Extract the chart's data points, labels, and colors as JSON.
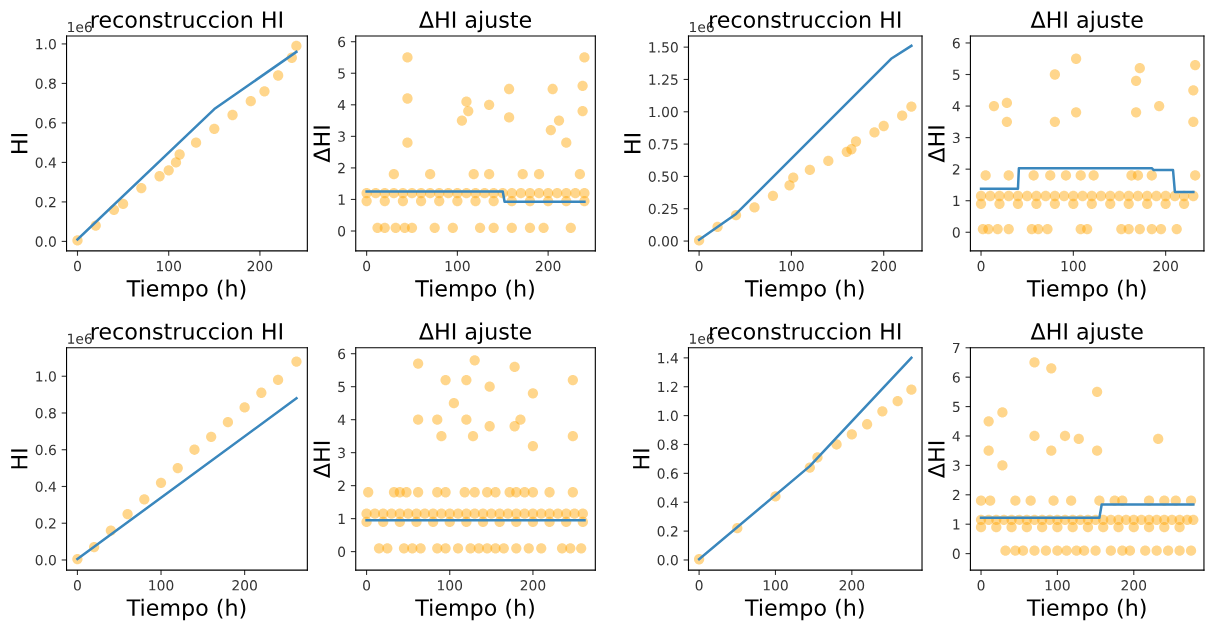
{
  "chart_data": [
    {
      "type": "line",
      "title": "reconstruccion HI",
      "xlabel": "Tiempo (h)",
      "ylabel": "HI",
      "annotations": [
        "1e6"
      ],
      "grid": false,
      "xlim": [
        -12,
        252
      ],
      "xticks": [
        0,
        100,
        200
      ],
      "ylim": [
        -0.048,
        1.04
      ],
      "yticks": [
        {
          "value": 0,
          "label": "0.0"
        },
        0.2,
        0.4,
        0.6,
        0.8,
        {
          "value": 1,
          "label": "1.0"
        }
      ],
      "series": [
        {
          "type": "scatter",
          "marker": "circle",
          "color": "#ffa500",
          "x": [
            0,
            20,
            40,
            50,
            70,
            90,
            100,
            108,
            112,
            130,
            150,
            170,
            190,
            205,
            220,
            235,
            240
          ],
          "values": [
            0.005,
            0.08,
            0.16,
            0.19,
            0.27,
            0.33,
            0.36,
            0.4,
            0.44,
            0.5,
            0.57,
            0.64,
            0.71,
            0.76,
            0.84,
            0.93,
            0.99
          ]
        },
        {
          "color": "#3a87bd",
          "x": [
            0,
            150,
            240
          ],
          "values": [
            0.01,
            0.67,
            0.96
          ]
        }
      ]
    },
    {
      "type": "line",
      "title": "ΔHI ajuste",
      "xlabel": "Tiempo (h)",
      "ylabel": "ΔHI",
      "grid": false,
      "xlim": [
        -12,
        252
      ],
      "xticks": [
        0,
        100,
        200
      ],
      "ylim": [
        -0.63,
        6.18
      ],
      "yticks": [
        0,
        1,
        2,
        3,
        4,
        5,
        6
      ],
      "series": [
        {
          "type": "scatter",
          "marker": "circle",
          "color": "#ffa500",
          "x": [
            0,
            10,
            20,
            30,
            40,
            50,
            60,
            70,
            80,
            90,
            100,
            110,
            120,
            130,
            140,
            150,
            160,
            170,
            180,
            190,
            200,
            210,
            220,
            230,
            240,
            0,
            20,
            40,
            60,
            80,
            100,
            120,
            140,
            160,
            180,
            200,
            220,
            240,
            30,
            70,
            118,
            135,
            172,
            190,
            235,
            12,
            20,
            32,
            42,
            50,
            75,
            95,
            125,
            140,
            160,
            180,
            195,
            225,
            45,
            45,
            45,
            105,
            110,
            112,
            135,
            157,
            157,
            203,
            205,
            212,
            220,
            238,
            238,
            240
          ],
          "values": [
            1.2,
            1.2,
            1.2,
            1.2,
            1.2,
            1.2,
            1.2,
            1.2,
            1.2,
            1.2,
            1.2,
            1.2,
            1.2,
            1.2,
            1.2,
            1.2,
            1.2,
            1.2,
            1.2,
            1.2,
            1.2,
            1.2,
            1.2,
            1.2,
            1.2,
            0.95,
            0.95,
            0.95,
            0.95,
            0.95,
            0.95,
            0.95,
            0.95,
            0.95,
            0.95,
            0.95,
            0.95,
            0.95,
            1.8,
            1.8,
            1.8,
            1.8,
            1.8,
            1.8,
            1.8,
            0.1,
            0.1,
            0.1,
            0.1,
            0.1,
            0.1,
            0.1,
            0.1,
            0.1,
            0.1,
            0.1,
            0.1,
            0.1,
            2.8,
            4.2,
            5.5,
            3.5,
            4.1,
            3.8,
            4.0,
            3.6,
            4.5,
            3.2,
            4.5,
            3.5,
            2.8,
            3.8,
            4.6,
            5.5
          ]
        },
        {
          "color": "#3a87bd",
          "x": [
            0,
            150,
            152,
            240
          ],
          "values": [
            1.25,
            1.25,
            0.93,
            0.93
          ]
        }
      ]
    },
    {
      "type": "line",
      "title": "reconstruccion HI",
      "xlabel": "Tiempo (h)",
      "ylabel": "HI",
      "annotations": [
        "1e6"
      ],
      "grid": false,
      "xlim": [
        -11.5,
        241.5
      ],
      "xticks": [
        0,
        100,
        200
      ],
      "ylim": [
        -0.076,
        1.586
      ],
      "yticks": [
        {
          "value": 0,
          "label": "0.00"
        },
        0.25,
        {
          "value": 0.5,
          "label": "0.50"
        },
        0.75,
        {
          "value": 1,
          "label": "1.00"
        },
        1.25,
        {
          "value": 1.5,
          "label": "1.50"
        }
      ],
      "series": [
        {
          "type": "scatter",
          "marker": "circle",
          "color": "#ffa500",
          "x": [
            0,
            20,
            40,
            60,
            80,
            98,
            102,
            120,
            140,
            160,
            165,
            170,
            190,
            200,
            220,
            230
          ],
          "values": [
            0.005,
            0.11,
            0.2,
            0.26,
            0.35,
            0.43,
            0.49,
            0.55,
            0.62,
            0.69,
            0.71,
            0.77,
            0.84,
            0.89,
            0.97,
            1.04
          ]
        },
        {
          "color": "#3a87bd",
          "x": [
            0,
            40,
            208,
            230
          ],
          "values": [
            0.01,
            0.21,
            1.41,
            1.51
          ]
        }
      ]
    },
    {
      "type": "line",
      "title": "ΔHI ajuste",
      "xlabel": "Tiempo (h)",
      "ylabel": "ΔHI",
      "grid": false,
      "xlim": [
        -11.5,
        241.5
      ],
      "xticks": [
        0,
        100,
        200
      ],
      "ylim": [
        -0.59,
        6.22
      ],
      "yticks": [
        0,
        1,
        2,
        3,
        4,
        5,
        6
      ],
      "series": [
        {
          "type": "scatter",
          "marker": "circle",
          "color": "#ffa500",
          "x": [
            0,
            10,
            20,
            30,
            40,
            50,
            60,
            70,
            80,
            90,
            100,
            110,
            120,
            130,
            140,
            150,
            160,
            170,
            180,
            190,
            200,
            210,
            220,
            230,
            0,
            20,
            40,
            60,
            80,
            100,
            120,
            140,
            160,
            180,
            200,
            220,
            5,
            30,
            57,
            75,
            92,
            108,
            122,
            163,
            170,
            185,
            232,
            2,
            8,
            18,
            30,
            55,
            62,
            72,
            108,
            115,
            152,
            160,
            172,
            185,
            195,
            212,
            14,
            28,
            28,
            80,
            80,
            103,
            103,
            168,
            168,
            172,
            193,
            230,
            230,
            232
          ],
          "values": [
            1.15,
            1.15,
            1.15,
            1.15,
            1.15,
            1.15,
            1.15,
            1.15,
            1.15,
            1.15,
            1.15,
            1.15,
            1.15,
            1.15,
            1.15,
            1.15,
            1.15,
            1.15,
            1.15,
            1.15,
            1.15,
            1.15,
            1.15,
            1.15,
            0.9,
            0.9,
            0.9,
            0.9,
            0.9,
            0.9,
            0.9,
            0.9,
            0.9,
            0.9,
            0.9,
            0.9,
            1.8,
            1.8,
            1.8,
            1.8,
            1.8,
            1.8,
            1.8,
            1.8,
            1.8,
            1.8,
            1.8,
            0.1,
            0.1,
            0.1,
            0.1,
            0.1,
            0.1,
            0.1,
            0.1,
            0.1,
            0.1,
            0.1,
            0.1,
            0.1,
            0.1,
            0.1,
            4.0,
            4.1,
            3.5,
            3.5,
            5.0,
            3.8,
            5.5,
            3.8,
            4.8,
            5.2,
            4.0,
            3.5,
            4.5,
            5.3
          ]
        },
        {
          "color": "#3a87bd",
          "x": [
            0,
            40,
            41,
            185,
            187,
            208,
            210,
            230
          ],
          "values": [
            1.38,
            1.38,
            2.03,
            2.03,
            1.97,
            1.97,
            1.28,
            1.28
          ]
        }
      ]
    },
    {
      "type": "line",
      "title": "reconstruccion HI",
      "xlabel": "Tiempo (h)",
      "ylabel": "HI",
      "annotations": [
        "1e6"
      ],
      "grid": false,
      "xlim": [
        -13,
        275
      ],
      "xticks": [
        0,
        100,
        200
      ],
      "ylim": [
        -0.055,
        1.155
      ],
      "yticks": [
        {
          "value": 0,
          "label": "0.0"
        },
        0.2,
        0.4,
        0.6,
        0.8,
        {
          "value": 1,
          "label": "1.0"
        }
      ],
      "series": [
        {
          "type": "scatter",
          "marker": "circle",
          "color": "#ffa500",
          "x": [
            0,
            20,
            40,
            60,
            80,
            100,
            120,
            140,
            160,
            180,
            200,
            220,
            240,
            262
          ],
          "values": [
            0.005,
            0.07,
            0.16,
            0.25,
            0.33,
            0.42,
            0.5,
            0.6,
            0.67,
            0.75,
            0.83,
            0.91,
            0.98,
            1.08
          ]
        },
        {
          "color": "#3a87bd",
          "x": [
            0,
            262
          ],
          "values": [
            0.005,
            0.88
          ]
        }
      ]
    },
    {
      "type": "line",
      "title": "ΔHI ajuste",
      "xlabel": "Tiempo (h)",
      "ylabel": "ΔHI",
      "grid": false,
      "xlim": [
        -13,
        275
      ],
      "xticks": [
        0,
        100,
        200
      ],
      "ylim": [
        -0.56,
        6.18
      ],
      "yticks": [
        0,
        1,
        2,
        3,
        4,
        5,
        6
      ],
      "series": [
        {
          "type": "scatter",
          "marker": "circle",
          "color": "#ffa500",
          "x": [
            0,
            10,
            20,
            30,
            40,
            50,
            60,
            70,
            80,
            90,
            100,
            110,
            120,
            130,
            140,
            150,
            160,
            170,
            180,
            190,
            200,
            210,
            220,
            230,
            240,
            250,
            260,
            0,
            20,
            40,
            60,
            80,
            100,
            120,
            140,
            160,
            180,
            200,
            220,
            240,
            260,
            2,
            33,
            40,
            48,
            62,
            85,
            95,
            118,
            130,
            145,
            155,
            172,
            180,
            190,
            200,
            220,
            248,
            15,
            25,
            45,
            55,
            65,
            85,
            95,
            110,
            125,
            135,
            145,
            155,
            165,
            180,
            195,
            210,
            235,
            245,
            258,
            62,
            62,
            85,
            90,
            95,
            105,
            120,
            120,
            128,
            130,
            148,
            148,
            178,
            178,
            185,
            200,
            200,
            248,
            248
          ],
          "values": [
            1.15,
            1.15,
            1.15,
            1.15,
            1.15,
            1.15,
            1.15,
            1.15,
            1.15,
            1.15,
            1.15,
            1.15,
            1.15,
            1.15,
            1.15,
            1.15,
            1.15,
            1.15,
            1.15,
            1.15,
            1.15,
            1.15,
            1.15,
            1.15,
            1.15,
            1.15,
            1.15,
            0.9,
            0.9,
            0.9,
            0.9,
            0.9,
            0.9,
            0.9,
            0.9,
            0.9,
            0.9,
            0.9,
            0.9,
            0.9,
            0.9,
            1.8,
            1.8,
            1.8,
            1.8,
            1.8,
            1.8,
            1.8,
            1.8,
            1.8,
            1.8,
            1.8,
            1.8,
            1.8,
            1.8,
            1.8,
            1.8,
            1.8,
            0.1,
            0.1,
            0.1,
            0.1,
            0.1,
            0.1,
            0.1,
            0.1,
            0.1,
            0.1,
            0.1,
            0.1,
            0.1,
            0.1,
            0.1,
            0.1,
            0.1,
            0.1,
            0.1,
            4.0,
            5.7,
            4.0,
            3.5,
            5.2,
            4.5,
            4.0,
            5.2,
            3.5,
            5.8,
            3.8,
            5.0,
            3.8,
            5.6,
            4.0,
            3.2,
            4.8,
            3.5,
            5.2
          ]
        },
        {
          "color": "#3a87bd",
          "x": [
            0,
            262
          ],
          "values": [
            0.95,
            0.95
          ]
        }
      ]
    },
    {
      "type": "line",
      "title": "reconstruccion HI",
      "xlabel": "Tiempo (h)",
      "ylabel": "HI",
      "annotations": [
        "1e6"
      ],
      "grid": false,
      "xlim": [
        -13.9,
        291.9
      ],
      "xticks": [
        0,
        100,
        200
      ],
      "ylim": [
        -0.07,
        1.47
      ],
      "yticks": [
        {
          "value": 0,
          "label": "0.0"
        },
        0.2,
        0.4,
        0.6,
        0.8,
        {
          "value": 1,
          "label": "1.0"
        },
        1.2,
        1.4
      ],
      "series": [
        {
          "type": "scatter",
          "marker": "circle",
          "color": "#ffa500",
          "x": [
            0,
            50,
            100,
            145,
            155,
            180,
            200,
            220,
            240,
            260,
            278
          ],
          "values": [
            0.005,
            0.22,
            0.44,
            0.64,
            0.71,
            0.8,
            0.87,
            0.94,
            1.03,
            1.1,
            1.18
          ]
        },
        {
          "color": "#3a87bd",
          "x": [
            0,
            145,
            278
          ],
          "values": [
            0.005,
            0.65,
            1.4
          ]
        }
      ]
    },
    {
      "type": "line",
      "title": "ΔHI ajuste",
      "xlabel": "Tiempo (h)",
      "ylabel": "ΔHI",
      "grid": false,
      "xlim": [
        -13.9,
        291.9
      ],
      "xticks": [
        0,
        100,
        200
      ],
      "ylim": [
        -0.56,
        7.0
      ],
      "yticks": [
        0,
        1,
        2,
        3,
        4,
        5,
        6,
        7
      ],
      "series": [
        {
          "type": "scatter",
          "marker": "circle",
          "color": "#ffa500",
          "x": [
            0,
            10,
            20,
            30,
            40,
            50,
            60,
            70,
            80,
            90,
            100,
            110,
            120,
            130,
            140,
            150,
            160,
            170,
            180,
            190,
            200,
            210,
            220,
            230,
            240,
            250,
            260,
            270,
            278,
            0,
            20,
            40,
            60,
            80,
            100,
            120,
            140,
            160,
            180,
            200,
            220,
            240,
            260,
            0,
            12,
            45,
            65,
            95,
            118,
            155,
            175,
            185,
            220,
            240,
            255,
            275,
            32,
            45,
            55,
            70,
            85,
            100,
            112,
            125,
            135,
            150,
            170,
            185,
            195,
            215,
            230,
            245,
            260,
            275,
            10,
            10,
            28,
            28,
            70,
            70,
            92,
            92,
            110,
            128,
            152,
            152,
            232
          ],
          "values": [
            1.15,
            1.15,
            1.15,
            1.15,
            1.15,
            1.15,
            1.15,
            1.15,
            1.15,
            1.15,
            1.15,
            1.15,
            1.15,
            1.15,
            1.15,
            1.15,
            1.15,
            1.15,
            1.15,
            1.15,
            1.15,
            1.15,
            1.15,
            1.15,
            1.15,
            1.15,
            1.15,
            1.15,
            1.15,
            0.9,
            0.9,
            0.9,
            0.9,
            0.9,
            0.9,
            0.9,
            0.9,
            0.9,
            0.9,
            0.9,
            0.9,
            0.9,
            0.9,
            1.8,
            1.8,
            1.8,
            1.8,
            1.8,
            1.8,
            1.8,
            1.8,
            1.8,
            1.8,
            1.8,
            1.8,
            1.8,
            0.1,
            0.1,
            0.1,
            0.1,
            0.1,
            0.1,
            0.1,
            0.1,
            0.1,
            0.1,
            0.1,
            0.1,
            0.1,
            0.1,
            0.1,
            0.1,
            0.1,
            0.1,
            3.5,
            4.5,
            3.0,
            4.8,
            4.0,
            6.5,
            3.5,
            6.3,
            4.0,
            3.9,
            3.5,
            5.5,
            3.9
          ]
        },
        {
          "color": "#3a87bd",
          "x": [
            0,
            155,
            158,
            278
          ],
          "values": [
            1.22,
            1.22,
            1.67,
            1.67
          ]
        }
      ]
    }
  ]
}
